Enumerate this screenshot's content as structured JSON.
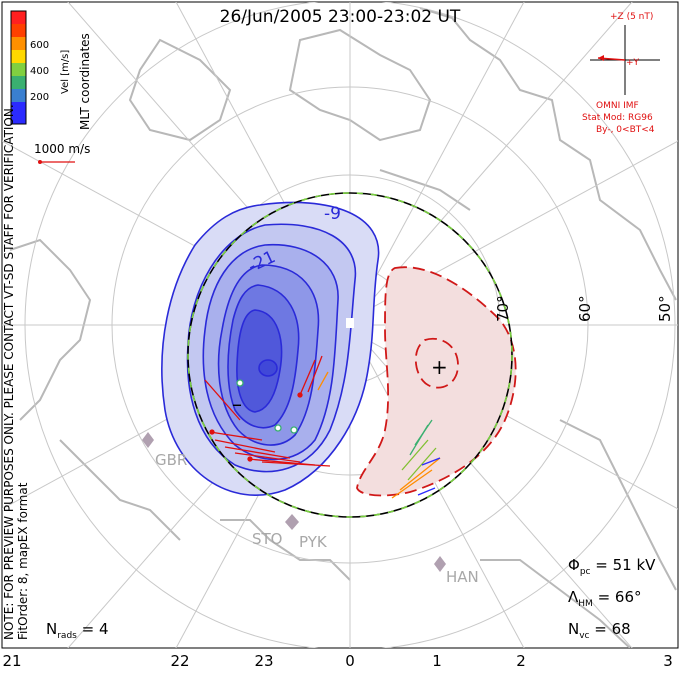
{
  "title": "26/Jun/2005 23:00-23:02 UT",
  "coordinates_label": "MLT coordinates",
  "notes": {
    "line1": "NOTE: FOR PREVIEW PURPOSES ONLY. PLEASE CONTACT VT-SD STAFF FOR VERIFICATION.",
    "line2": "FitOrder: 8, mapEX format"
  },
  "colorbar": {
    "label": "Vel [m/s]",
    "ticks": [
      "600",
      "400",
      "200"
    ],
    "colors": [
      "#2b2bff",
      "#3a7fd0",
      "#3ab070",
      "#80d040",
      "#ffd800",
      "#ff9000",
      "#ff4000",
      "#ff2020"
    ]
  },
  "scale_vector": {
    "label": "1000 m/s",
    "color": "#e01010"
  },
  "imf": {
    "z_label": "+Z (5 nT)",
    "y_label": "+Y",
    "source": "OMNI IMF",
    "model": "Stat Mod: RG96",
    "condition": "By-, 0<BT<4",
    "color": "#e01010"
  },
  "latitude_labels": [
    "70°",
    "60°",
    "50°"
  ],
  "mlt_labels": [
    "21",
    "22",
    "23",
    "0",
    "1",
    "2",
    "3"
  ],
  "contour_labels": [
    "-9",
    "-21"
  ],
  "pole_markers": {
    "min": "–",
    "max": "+"
  },
  "stations": [
    "GBR",
    "STO",
    "PYK",
    "HAN"
  ],
  "stats": {
    "phi_pc": {
      "symbol": "Φ",
      "sub": "pc",
      "value": "= 51 kV"
    },
    "lambda_hm": {
      "symbol": "Λ",
      "sub": "HM",
      "value": "= 66°"
    },
    "n_vc": {
      "symbol": "N",
      "sub": "vc",
      "value": "= 68"
    },
    "n_rads": {
      "symbol": "N",
      "sub": "rads",
      "value": "= 4"
    }
  },
  "colors": {
    "negative_cell": "#2a2ad8",
    "positive_cell": "#d01818",
    "positive_fill": "#f3dede",
    "continents": "#b8b8b8",
    "grid": "#c8c8c8",
    "boundary_dash": "#7ad040"
  }
}
